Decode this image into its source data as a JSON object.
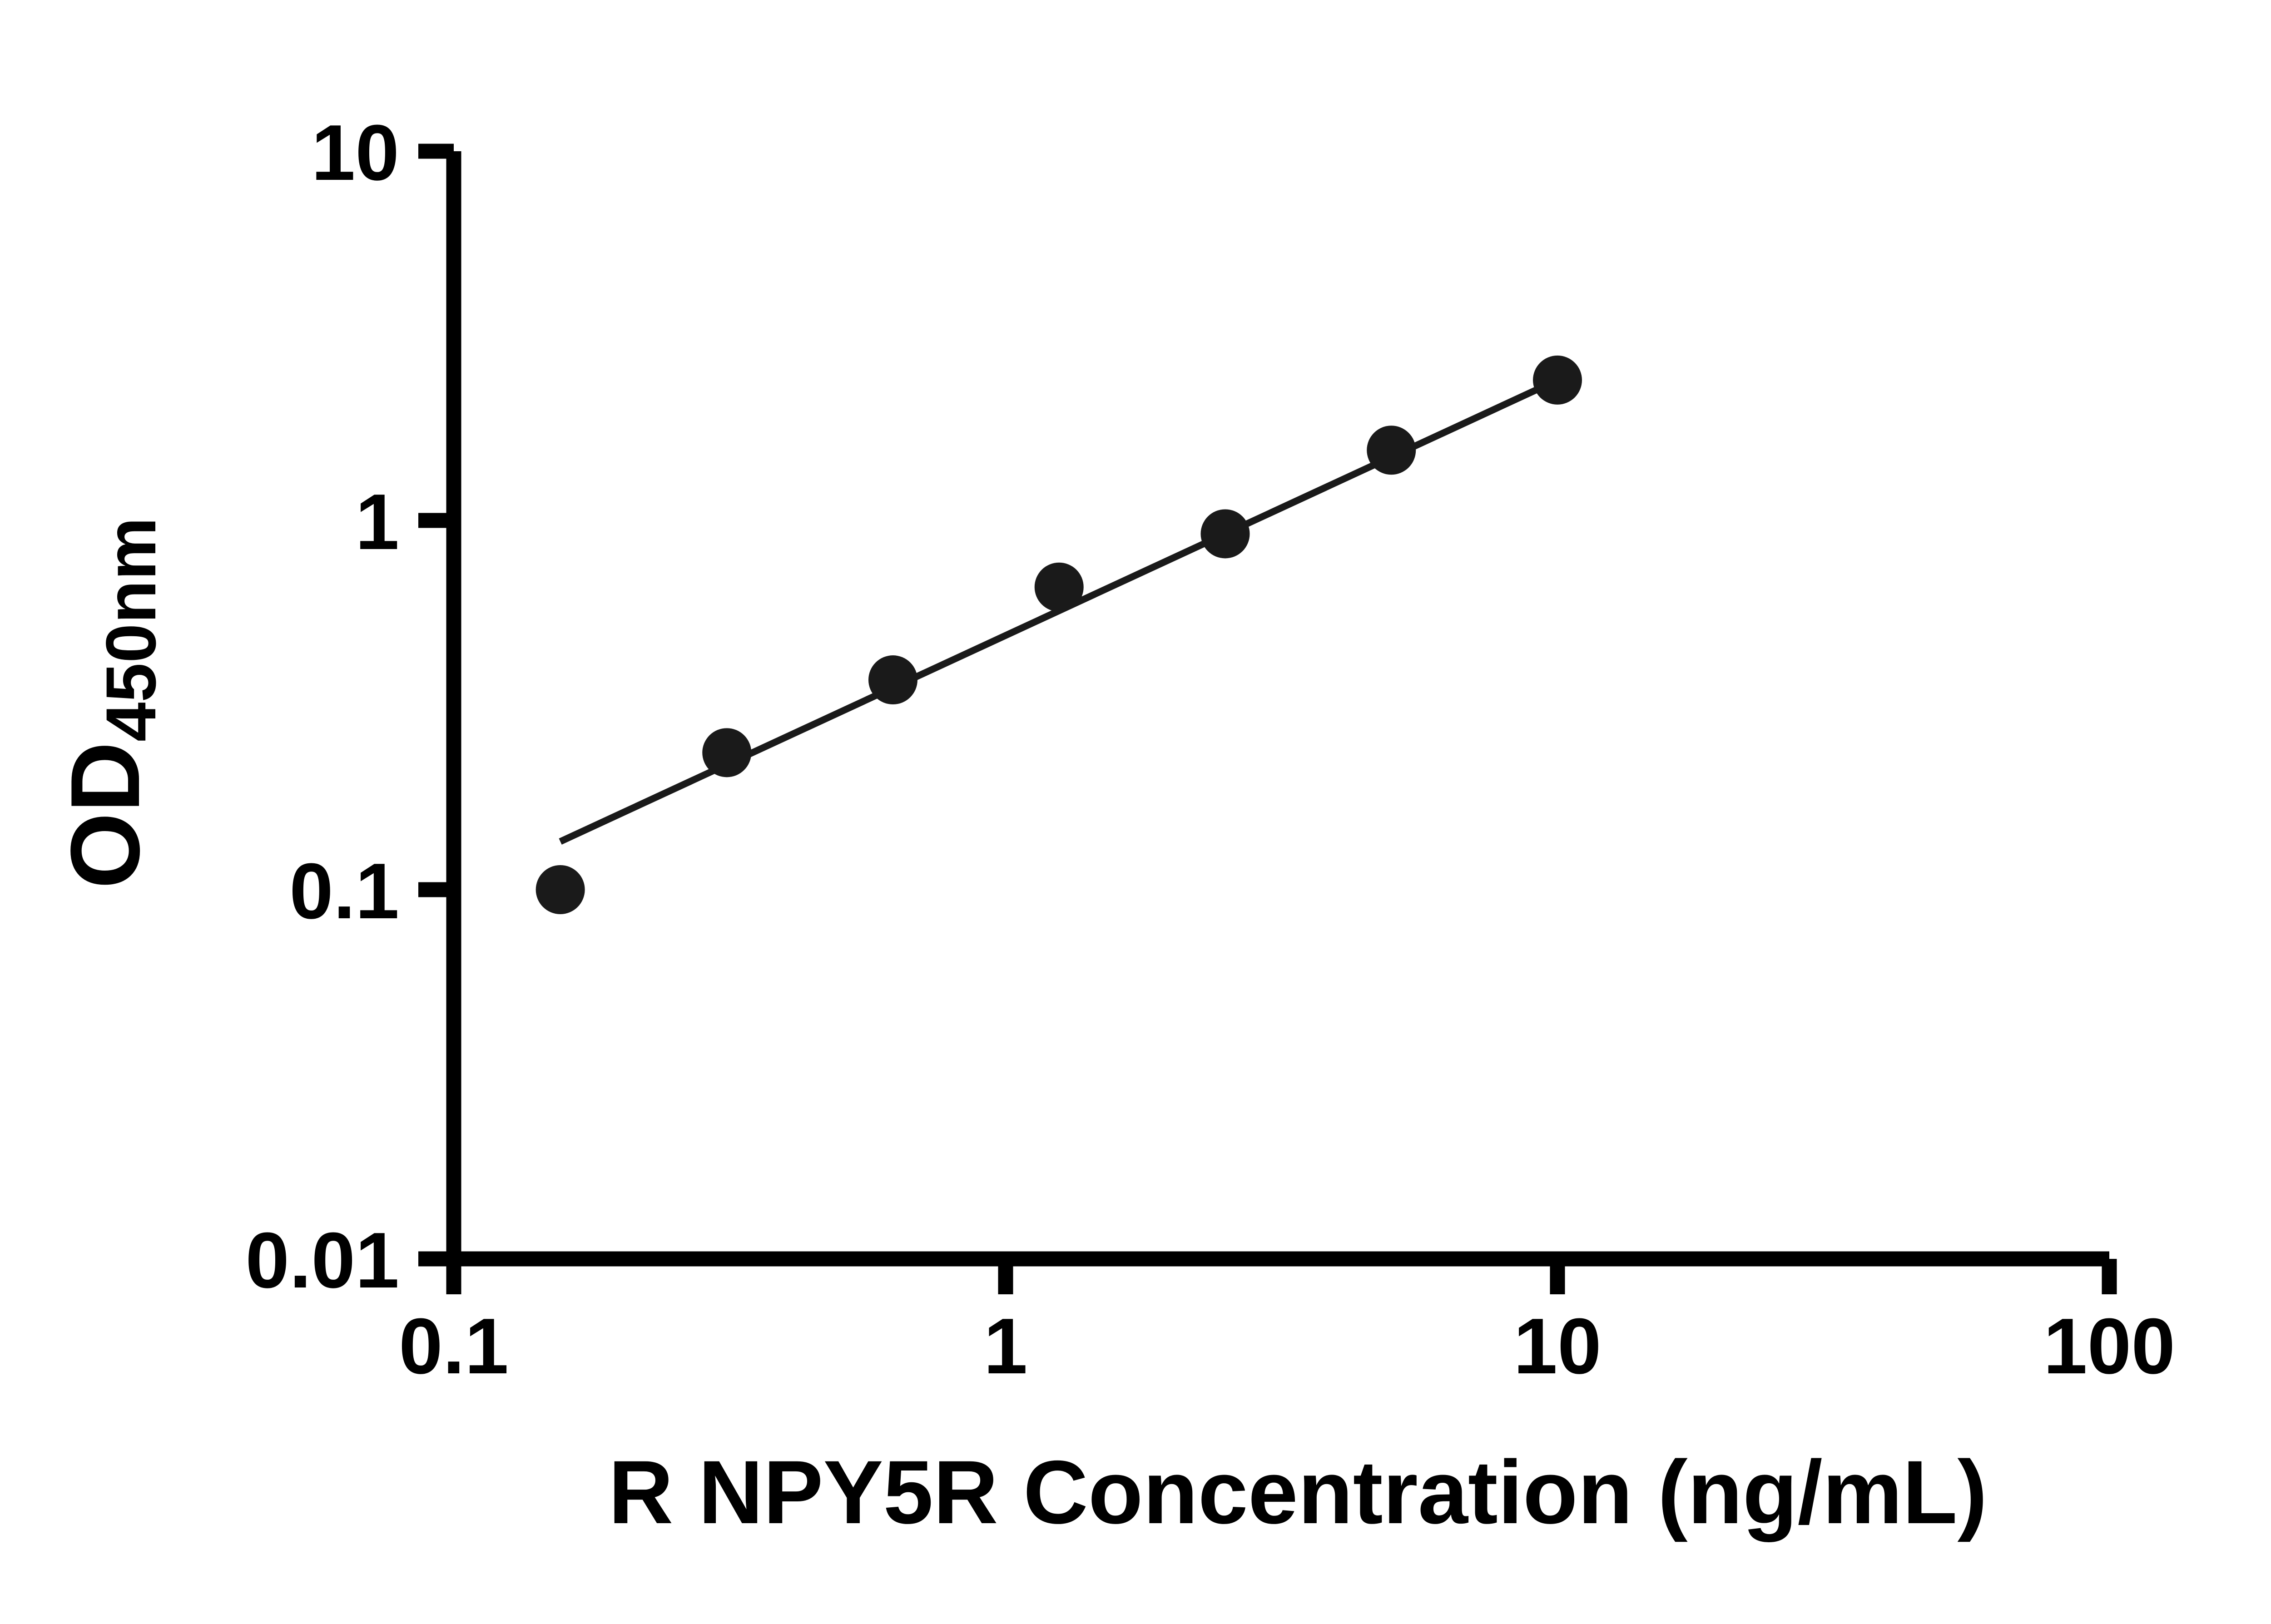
{
  "page": {
    "background_color": "#ffffff"
  },
  "chart_data": {
    "type": "scatter",
    "title": "",
    "xlabel": "R NPY5R Concentration (ng/mL)",
    "ylabel_main": "OD",
    "ylabel_sub": "450nm",
    "x_scale": "log",
    "y_scale": "log",
    "xlim": [
      0.1,
      100
    ],
    "ylim": [
      0.01,
      10
    ],
    "x_ticks": [
      0.1,
      1,
      10,
      100
    ],
    "x_tick_labels": [
      "0.1",
      "1",
      "10",
      "100"
    ],
    "y_ticks": [
      0.01,
      0.1,
      1,
      10
    ],
    "y_tick_labels": [
      "0.01",
      "0.1",
      "1",
      "10"
    ],
    "grid": false,
    "legend": "none",
    "axis_color": "#000000",
    "marker_color": "#1a1a1a",
    "line_color": "#1a1a1a",
    "points": [
      {
        "x": 0.156,
        "y": 0.1
      },
      {
        "x": 0.3125,
        "y": 0.235
      },
      {
        "x": 0.625,
        "y": 0.37
      },
      {
        "x": 1.25,
        "y": 0.66
      },
      {
        "x": 2.5,
        "y": 0.92
      },
      {
        "x": 5.0,
        "y": 1.55
      },
      {
        "x": 10.0,
        "y": 2.4
      }
    ],
    "trend_line": {
      "x_start": 0.156,
      "y_start": 0.135,
      "x_end": 10.0,
      "y_end": 2.4
    }
  }
}
